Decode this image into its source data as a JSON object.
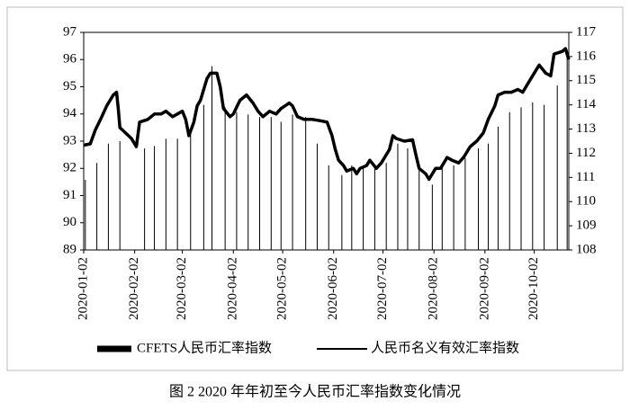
{
  "chart_data": {
    "type": "line",
    "caption": "图 2 2020 年年初至今人民币汇率指数变化情况",
    "xlim": [
      "2020-01-02",
      "2020-10-23"
    ],
    "xticks": [
      "2020-01-02",
      "2020-02-02",
      "2020-03-02",
      "2020-04-02",
      "2020-05-02",
      "2020-06-02",
      "2020-07-02",
      "2020-08-02",
      "2020-09-02",
      "2020-10-02"
    ],
    "ylim": [
      89,
      97
    ],
    "yticks": [
      89,
      90,
      91,
      92,
      93,
      94,
      95,
      96,
      97
    ],
    "y2lim": [
      108,
      117
    ],
    "y2ticks": [
      108,
      109,
      110,
      111,
      112,
      113,
      114,
      115,
      116,
      117
    ],
    "series": [
      {
        "name": "CFETS人民币汇率指数",
        "type": "line",
        "color": "#000000",
        "x": [
          "2020-01-02",
          "2020-01-06",
          "2020-01-09",
          "2020-01-13",
          "2020-01-16",
          "2020-01-20",
          "2020-01-22",
          "2020-01-23",
          "2020-01-24",
          "2020-01-31",
          "2020-02-03",
          "2020-02-05",
          "2020-02-10",
          "2020-02-14",
          "2020-02-18",
          "2020-02-21",
          "2020-02-25",
          "2020-02-28",
          "2020-03-02",
          "2020-03-04",
          "2020-03-06",
          "2020-03-09",
          "2020-03-11",
          "2020-03-13",
          "2020-03-17",
          "2020-03-19",
          "2020-03-23",
          "2020-03-25",
          "2020-03-27",
          "2020-03-31",
          "2020-04-02",
          "2020-04-06",
          "2020-04-10",
          "2020-04-14",
          "2020-04-17",
          "2020-04-20",
          "2020-04-24",
          "2020-04-28",
          "2020-05-01",
          "2020-05-06",
          "2020-05-08",
          "2020-05-11",
          "2020-05-15",
          "2020-05-20",
          "2020-05-25",
          "2020-05-29",
          "2020-06-01",
          "2020-06-03",
          "2020-06-05",
          "2020-06-08",
          "2020-06-10",
          "2020-06-14",
          "2020-06-16",
          "2020-06-18",
          "2020-06-22",
          "2020-06-24",
          "2020-06-28",
          "2020-07-01",
          "2020-07-03",
          "2020-07-06",
          "2020-07-08",
          "2020-07-10",
          "2020-07-15",
          "2020-07-20",
          "2020-07-22",
          "2020-07-24",
          "2020-07-28",
          "2020-07-30",
          "2020-08-03",
          "2020-08-06",
          "2020-08-10",
          "2020-08-13",
          "2020-08-17",
          "2020-08-20",
          "2020-08-24",
          "2020-08-28",
          "2020-09-01",
          "2020-09-04",
          "2020-09-08",
          "2020-09-10",
          "2020-09-14",
          "2020-09-18",
          "2020-09-22",
          "2020-09-25",
          "2020-09-29",
          "2020-10-05",
          "2020-10-09",
          "2020-10-12",
          "2020-10-14",
          "2020-10-19",
          "2020-10-21",
          "2020-10-23"
        ],
        "values": [
          92.85,
          92.9,
          93.4,
          93.9,
          94.3,
          94.7,
          94.8,
          94.2,
          93.5,
          93.1,
          92.8,
          93.7,
          93.8,
          94.0,
          94.0,
          94.1,
          93.9,
          94.0,
          94.1,
          93.8,
          93.2,
          93.7,
          94.3,
          94.5,
          95.3,
          95.5,
          95.5,
          95.0,
          94.2,
          93.9,
          94.0,
          94.5,
          94.7,
          94.4,
          94.1,
          93.9,
          94.1,
          94.0,
          94.2,
          94.4,
          94.3,
          93.9,
          93.8,
          93.8,
          93.75,
          93.7,
          93.2,
          92.7,
          92.3,
          92.1,
          91.9,
          92.0,
          91.8,
          92.0,
          92.1,
          92.3,
          92.0,
          92.2,
          92.4,
          92.7,
          93.2,
          93.1,
          93.0,
          93.05,
          92.5,
          92.0,
          91.8,
          91.6,
          92.0,
          92.0,
          92.4,
          92.3,
          92.2,
          92.4,
          92.8,
          93.0,
          93.3,
          93.8,
          94.3,
          94.7,
          94.8,
          94.8,
          94.9,
          94.8,
          95.2,
          95.8,
          95.5,
          95.4,
          96.2,
          96.3,
          96.4,
          96.0
        ]
      },
      {
        "name": "人民币名义有效汇率指数",
        "type": "bar",
        "axis": "y2",
        "color": "#000000",
        "x": [
          "2020-01-03",
          "2020-01-10",
          "2020-01-17",
          "2020-01-24",
          "2020-02-08",
          "2020-02-14",
          "2020-02-21",
          "2020-02-28",
          "2020-03-07",
          "2020-03-15",
          "2020-03-20",
          "2020-03-28",
          "2020-04-04",
          "2020-04-11",
          "2020-04-18",
          "2020-04-25",
          "2020-05-01",
          "2020-05-08",
          "2020-05-16",
          "2020-05-23",
          "2020-05-30",
          "2020-06-07",
          "2020-06-13",
          "2020-06-20",
          "2020-06-27",
          "2020-07-04",
          "2020-07-11",
          "2020-07-17",
          "2020-07-24",
          "2020-08-01",
          "2020-08-07",
          "2020-08-14",
          "2020-08-21",
          "2020-08-29",
          "2020-09-04",
          "2020-09-10",
          "2020-09-17",
          "2020-09-24",
          "2020-10-01",
          "2020-10-08",
          "2020-10-16",
          "2020-10-22"
        ],
        "values": [
          110.9,
          111.6,
          112.4,
          112.5,
          112.2,
          112.3,
          112.6,
          112.6,
          112.8,
          114.0,
          115.6,
          113.9,
          113.7,
          113.6,
          113.5,
          113.5,
          113.3,
          113.6,
          113.5,
          112.4,
          111.5,
          111.1,
          111.5,
          111.5,
          111.5,
          111.6,
          112.4,
          112.2,
          111.5,
          110.7,
          111.5,
          111.5,
          111.8,
          112.2,
          112.4,
          113.1,
          113.7,
          113.9,
          114.1,
          114.0,
          114.8,
          116.3
        ]
      }
    ]
  }
}
